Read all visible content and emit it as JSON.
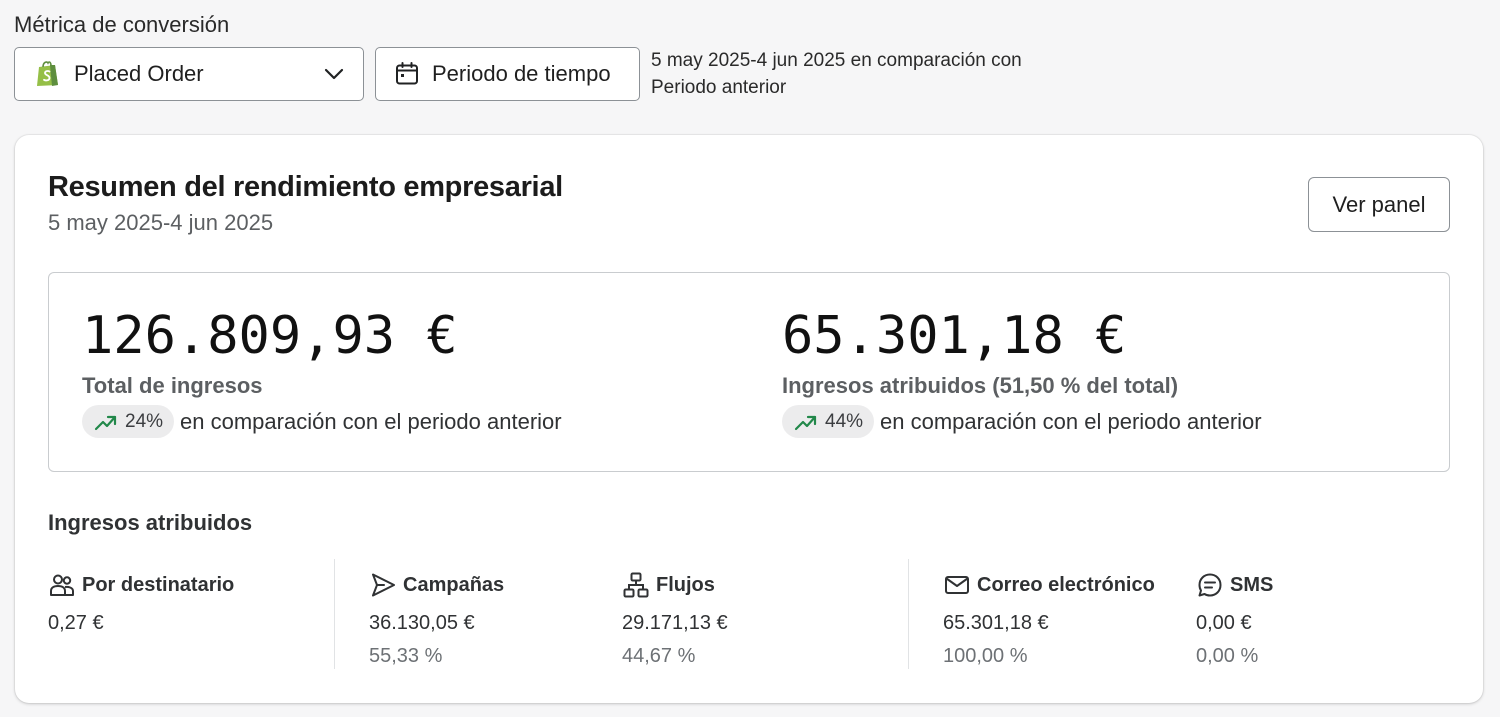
{
  "metric": {
    "label": "Métrica de conversión",
    "selected": "Placed Order"
  },
  "period": {
    "button_label": "Periodo de tiempo",
    "description": "5 may 2025-4 jun 2025 en comparación con Periodo anterior"
  },
  "card": {
    "title": "Resumen del rendimiento empresarial",
    "date_range": "5 may 2025-4 jun 2025",
    "view_button": "Ver panel"
  },
  "kpis": [
    {
      "amount": "126.809,93 €",
      "label": "Total de ingresos",
      "delta": "24%",
      "delta_text": "en comparación con el periodo anterior"
    },
    {
      "amount": "65.301,18 €",
      "label": "Ingresos atribuidos (51,50 % del total)",
      "delta": "44%",
      "delta_text": "en comparación con el periodo anterior"
    }
  ],
  "attributed": {
    "title": "Ingresos atribuidos",
    "columns": [
      {
        "icon": "recipients-icon",
        "label": "Por destinatario",
        "value": "0,27 €",
        "pct": ""
      },
      {
        "icon": "send-icon",
        "label": "Campañas",
        "value": "36.130,05 €",
        "pct": "55,33 %"
      },
      {
        "icon": "flow-icon",
        "label": "Flujos",
        "value": "29.171,13 €",
        "pct": "44,67 %"
      },
      {
        "icon": "mail-icon",
        "label": "Correo electrónico",
        "value": "65.301,18 €",
        "pct": "100,00 %"
      },
      {
        "icon": "sms-icon",
        "label": "SMS",
        "value": "0,00 €",
        "pct": "0,00 %"
      }
    ]
  },
  "colors": {
    "trend_up": "#22884a",
    "shopify_green": "#95bf47"
  }
}
